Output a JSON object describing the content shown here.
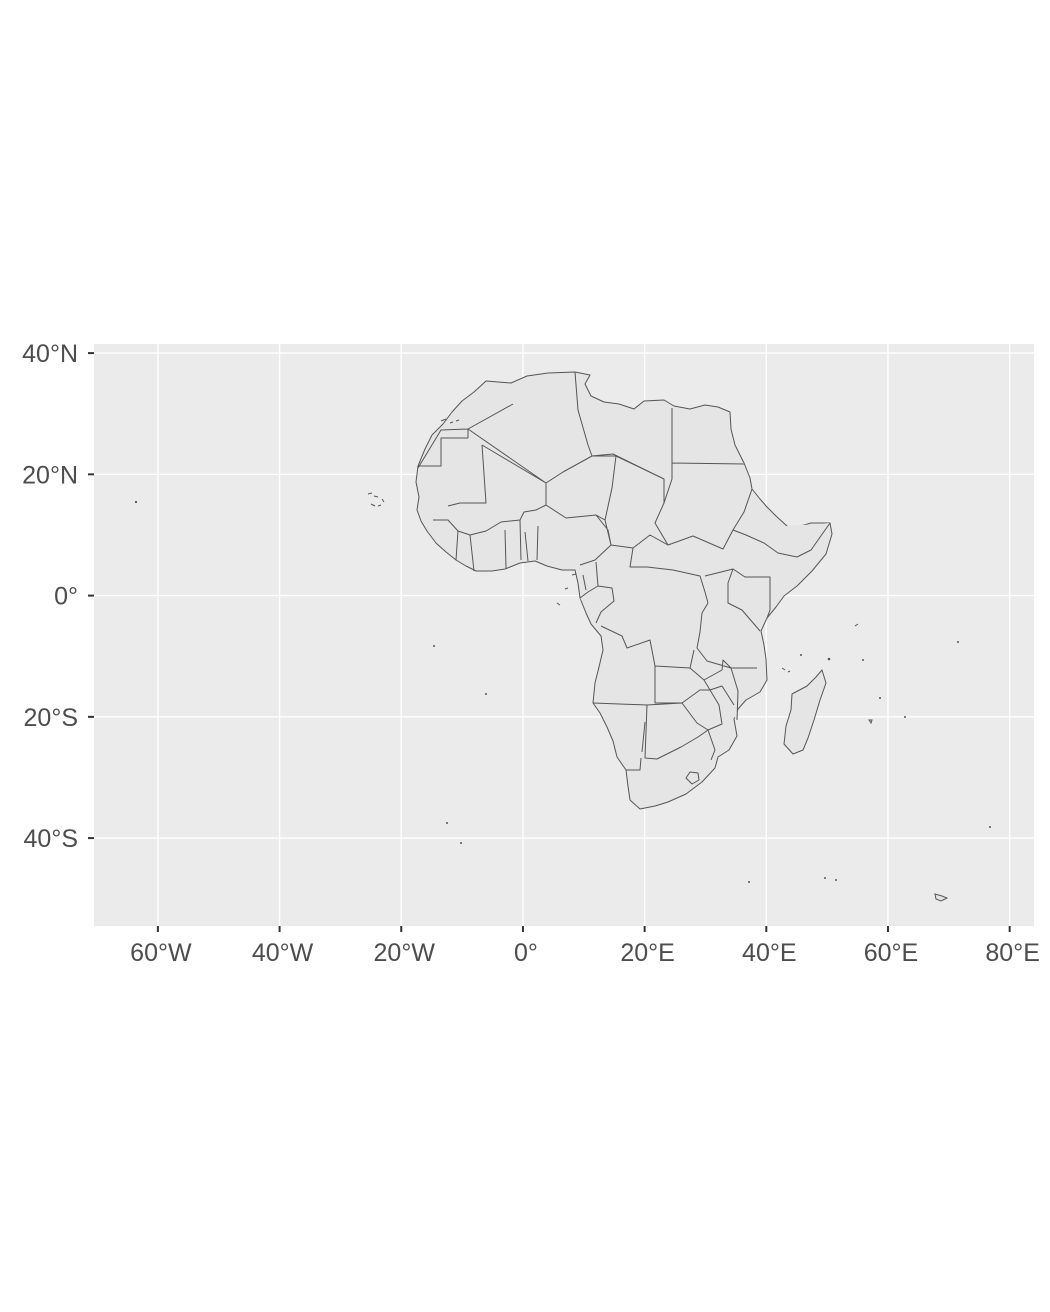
{
  "map": {
    "type": "choropleth-outline",
    "projection": "longlat",
    "region": "Africa",
    "xlim": [
      -70.5,
      84
    ],
    "ylim": [
      -54.5,
      41.5
    ],
    "grid": true,
    "x_breaks": [
      {
        "value": -60,
        "label": "60°W"
      },
      {
        "value": -40,
        "label": "40°W"
      },
      {
        "value": -20,
        "label": "20°W"
      },
      {
        "value": 0,
        "label": "0°"
      },
      {
        "value": 20,
        "label": "20°E"
      },
      {
        "value": 40,
        "label": "40°E"
      },
      {
        "value": 60,
        "label": "60°E"
      },
      {
        "value": 80,
        "label": "80°E"
      }
    ],
    "y_breaks": [
      {
        "value": 40,
        "label": "40°N"
      },
      {
        "value": 20,
        "label": "20°N"
      },
      {
        "value": 0,
        "label": "0°"
      },
      {
        "value": -20,
        "label": "20°S"
      },
      {
        "value": -40,
        "label": "40°S"
      }
    ],
    "colors": {
      "panel": "#ebebeb",
      "gridline": "#ffffff",
      "land_fill": "#e5e5e5",
      "border": "#555555",
      "text": "#4d4d4d",
      "axis_tick": "#333333"
    }
  }
}
